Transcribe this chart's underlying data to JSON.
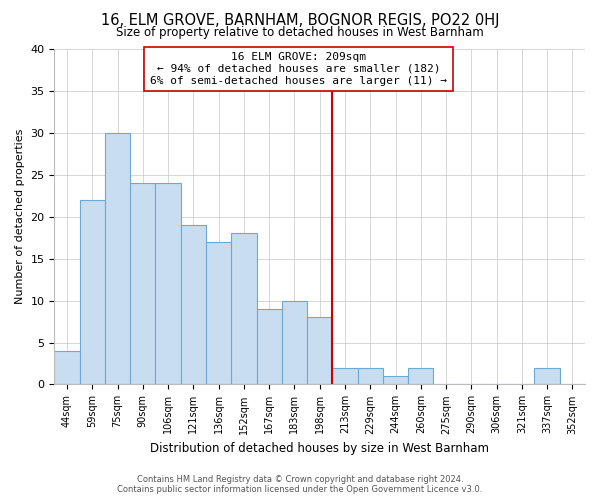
{
  "title": "16, ELM GROVE, BARNHAM, BOGNOR REGIS, PO22 0HJ",
  "subtitle": "Size of property relative to detached houses in West Barnham",
  "xlabel": "Distribution of detached houses by size in West Barnham",
  "ylabel": "Number of detached properties",
  "bar_labels": [
    "44sqm",
    "59sqm",
    "75sqm",
    "90sqm",
    "106sqm",
    "121sqm",
    "136sqm",
    "152sqm",
    "167sqm",
    "183sqm",
    "198sqm",
    "213sqm",
    "229sqm",
    "244sqm",
    "260sqm",
    "275sqm",
    "290sqm",
    "306sqm",
    "321sqm",
    "337sqm",
    "352sqm"
  ],
  "bar_values": [
    4,
    22,
    30,
    24,
    24,
    19,
    17,
    18,
    9,
    10,
    8,
    2,
    2,
    1,
    2,
    0,
    0,
    0,
    0,
    2,
    0
  ],
  "bar_color": "#c8ddf0",
  "bar_edge_color": "#6aaad4",
  "vline_x_idx": 11,
  "vline_color": "#cc0000",
  "annotation_title": "16 ELM GROVE: 209sqm",
  "annotation_line1": "← 94% of detached houses are smaller (182)",
  "annotation_line2": "6% of semi-detached houses are larger (11) →",
  "ylim": [
    0,
    40
  ],
  "yticks": [
    0,
    5,
    10,
    15,
    20,
    25,
    30,
    35,
    40
  ],
  "footer_line1": "Contains HM Land Registry data © Crown copyright and database right 2024.",
  "footer_line2": "Contains public sector information licensed under the Open Government Licence v3.0.",
  "bg_color": "#ffffff",
  "grid_color": "#d0d0d0"
}
